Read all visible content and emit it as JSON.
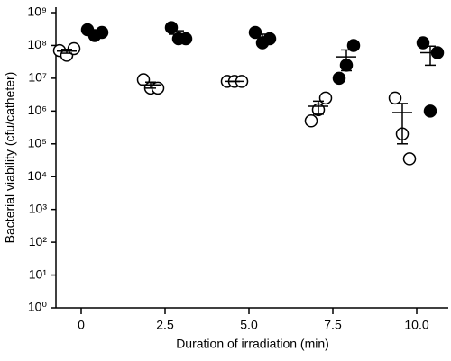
{
  "chart_data": {
    "type": "dot",
    "log_scale": true,
    "xlabel": "Duration of irradiation (min)",
    "ylabel": "Bacterial viability (cfu/catheter)",
    "categories": [
      "0",
      "2.5",
      "5.0",
      "7.5",
      "10.0"
    ],
    "ylim": [
      1,
      1000000000
    ],
    "yticks": [
      {
        "value": 1,
        "label": "10⁰"
      },
      {
        "value": 10,
        "label": "10¹"
      },
      {
        "value": 100,
        "label": "10²"
      },
      {
        "value": 1000,
        "label": "10³"
      },
      {
        "value": 10000,
        "label": "10⁴"
      },
      {
        "value": 100000,
        "label": "10⁵"
      },
      {
        "value": 1000000,
        "label": "10⁶"
      },
      {
        "value": 10000000,
        "label": "10⁷"
      },
      {
        "value": 100000000,
        "label": "10⁸"
      },
      {
        "value": 1000000000,
        "label": "10⁹"
      }
    ],
    "series": [
      {
        "marker": "open",
        "color": "#000000",
        "values": [
          [
            70000000,
            50000000,
            80000000
          ],
          [
            9000000,
            5000000,
            5000000
          ],
          [
            8000000,
            8000000,
            8000000
          ],
          [
            500000,
            1100000,
            2500000
          ],
          [
            2500000,
            200000,
            35000
          ]
        ],
        "mean": [
          67000000,
          6300000,
          8000000,
          1400000,
          900000
        ],
        "sem": [
          9000000,
          1300000,
          0,
          600000,
          800000
        ]
      },
      {
        "marker": "filled",
        "color": "#000000",
        "values": [
          [
            300000000,
            200000000,
            250000000
          ],
          [
            350000000,
            160000000,
            160000000
          ],
          [
            250000000,
            120000000,
            160000000
          ],
          [
            10000000,
            25000000,
            100000000
          ],
          [
            120000000,
            1000000,
            60000000
          ]
        ],
        "mean": [
          250000000,
          220000000,
          180000000,
          45000000,
          60000000
        ],
        "sem": [
          30000000,
          60000000,
          40000000,
          28000000,
          35000000
        ]
      }
    ]
  }
}
